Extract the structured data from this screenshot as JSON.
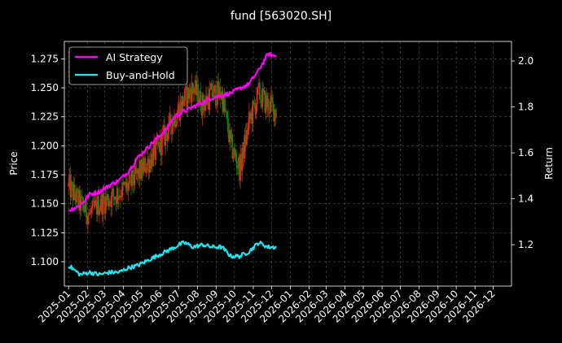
{
  "chart_data": {
    "type": "line",
    "title": "fund [563020.SH]",
    "ylabel_left": "Price",
    "ylabel_right": "Return",
    "ylim_left": [
      1.079,
      1.29
    ],
    "ylim_right": [
      1.02,
      2.085
    ],
    "xlim": [
      "2024-12-25",
      "2026-12-31"
    ],
    "grid": true,
    "legend_position": "top-left",
    "colors": {
      "background": "#000000",
      "ai_strategy": "#ff00ff",
      "buy_and_hold": "#19e8f0",
      "candle_up": "#ff1a1a",
      "candle_down": "#0a8a0a",
      "grid": "#555555"
    },
    "x_ticks": [
      "2025-01",
      "2025-02",
      "2025-03",
      "2025-04",
      "2025-05",
      "2025-06",
      "2025-07",
      "2025-08",
      "2025-09",
      "2025-10",
      "2025-11",
      "2025-12",
      "2026-01",
      "2026-02",
      "2026-03",
      "2026-04",
      "2026-05",
      "2026-06",
      "2026-07",
      "2026-08",
      "2026-09",
      "2026-10",
      "2026-11",
      "2026-12"
    ],
    "y_ticks_left": [
      "1.100",
      "1.125",
      "1.150",
      "1.175",
      "1.200",
      "1.225",
      "1.250",
      "1.275"
    ],
    "y_ticks_right": [
      "1.2",
      "1.4",
      "1.6",
      "1.8",
      "2.0"
    ],
    "series": [
      {
        "name": "AI Strategy",
        "axis": "right",
        "x": [
          "2025-01-01",
          "2025-01-20",
          "2025-02-05",
          "2025-02-20",
          "2025-03-10",
          "2025-03-25",
          "2025-04-10",
          "2025-04-25",
          "2025-05-10",
          "2025-05-25",
          "2025-06-10",
          "2025-06-25",
          "2025-07-10",
          "2025-07-25",
          "2025-08-10",
          "2025-08-25",
          "2025-09-10",
          "2025-09-25",
          "2025-10-10",
          "2025-10-25",
          "2025-11-10",
          "2025-11-25",
          "2025-12-10"
        ],
        "values": [
          1.35,
          1.37,
          1.42,
          1.43,
          1.46,
          1.48,
          1.52,
          1.58,
          1.62,
          1.66,
          1.7,
          1.76,
          1.78,
          1.8,
          1.82,
          1.84,
          1.85,
          1.86,
          1.88,
          1.9,
          1.96,
          2.03,
          2.02
        ]
      },
      {
        "name": "Buy-and-Hold",
        "axis": "right",
        "x": [
          "2025-01-01",
          "2025-01-20",
          "2025-02-05",
          "2025-02-20",
          "2025-03-10",
          "2025-03-25",
          "2025-04-10",
          "2025-04-25",
          "2025-05-10",
          "2025-05-25",
          "2025-06-10",
          "2025-06-25",
          "2025-07-10",
          "2025-07-25",
          "2025-08-10",
          "2025-08-25",
          "2025-09-10",
          "2025-09-25",
          "2025-10-10",
          "2025-10-25",
          "2025-11-10",
          "2025-11-25",
          "2025-12-10"
        ],
        "values": [
          1.11,
          1.07,
          1.08,
          1.07,
          1.08,
          1.08,
          1.1,
          1.11,
          1.13,
          1.15,
          1.17,
          1.19,
          1.21,
          1.19,
          1.2,
          1.19,
          1.19,
          1.15,
          1.15,
          1.17,
          1.21,
          1.19,
          1.19
        ]
      },
      {
        "name": "Price",
        "axis": "left",
        "x": [
          "2025-01-01",
          "2025-01-20",
          "2025-02-05",
          "2025-02-20",
          "2025-03-10",
          "2025-03-25",
          "2025-04-10",
          "2025-04-25",
          "2025-05-10",
          "2025-05-25",
          "2025-06-10",
          "2025-06-25",
          "2025-07-10",
          "2025-07-25",
          "2025-08-10",
          "2025-08-25",
          "2025-09-10",
          "2025-09-25",
          "2025-10-10",
          "2025-10-25",
          "2025-11-10",
          "2025-11-25",
          "2025-12-10"
        ],
        "values": [
          1.165,
          1.15,
          1.14,
          1.15,
          1.155,
          1.16,
          1.165,
          1.175,
          1.185,
          1.195,
          1.21,
          1.225,
          1.24,
          1.25,
          1.235,
          1.245,
          1.245,
          1.2,
          1.18,
          1.22,
          1.245,
          1.235,
          1.23
        ]
      }
    ]
  }
}
